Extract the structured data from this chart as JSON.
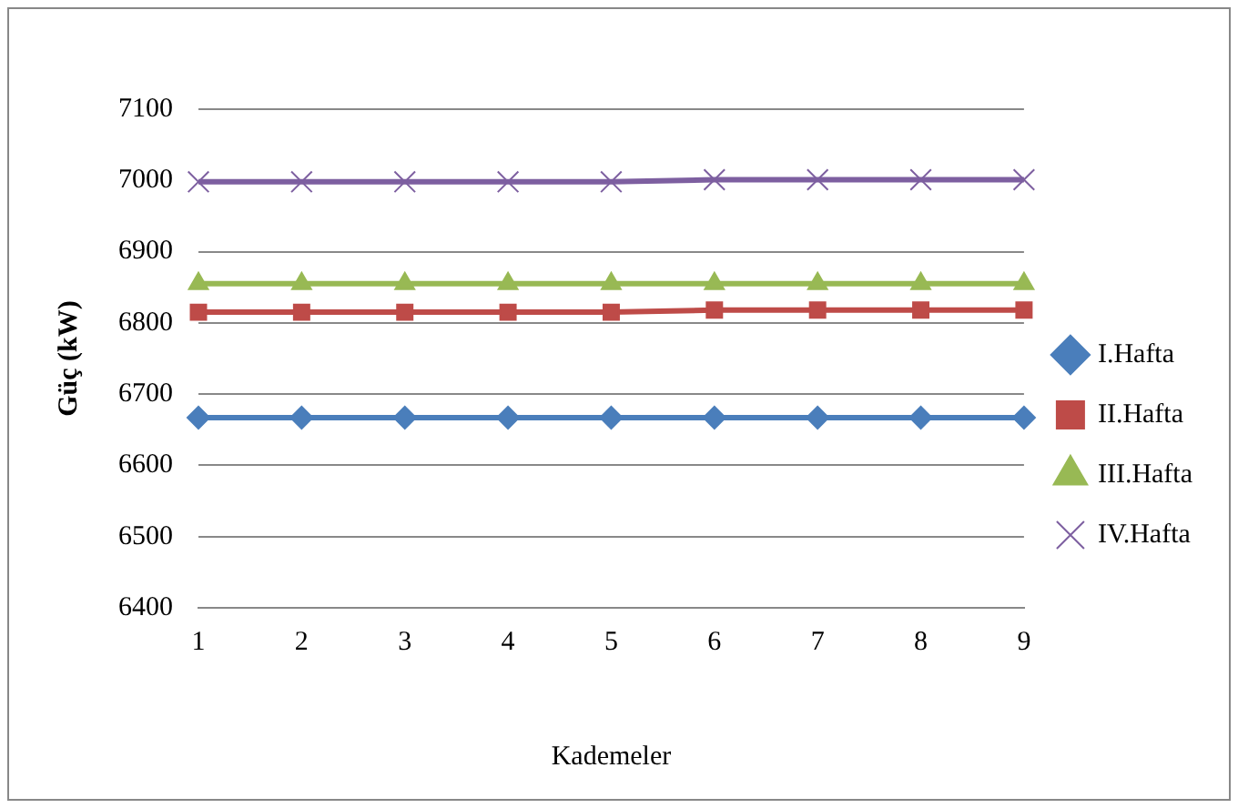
{
  "chart_data": {
    "type": "line",
    "xlabel": "Kademeler",
    "ylabel": "Güç (kW)",
    "categories": [
      "1",
      "2",
      "3",
      "4",
      "5",
      "6",
      "7",
      "8",
      "9"
    ],
    "series": [
      {
        "name": "I.Hafta",
        "color": "#4a7ebb",
        "marker": "diamond",
        "values": [
          6667,
          6667,
          6667,
          6667,
          6667,
          6667,
          6667,
          6667,
          6667
        ]
      },
      {
        "name": "II.Hafta",
        "color": "#be4b48",
        "marker": "square",
        "values": [
          6815,
          6815,
          6815,
          6815,
          6815,
          6818,
          6818,
          6818,
          6818
        ]
      },
      {
        "name": "III.Hafta",
        "color": "#98b954",
        "marker": "triangle",
        "values": [
          6855,
          6855,
          6855,
          6855,
          6855,
          6855,
          6855,
          6855,
          6855
        ]
      },
      {
        "name": "IV.Hafta",
        "color": "#7d5fa0",
        "marker": "cross",
        "values": [
          6998,
          6998,
          6998,
          6998,
          6998,
          7001,
          7001,
          7001,
          7001
        ]
      }
    ],
    "ylim": [
      6400,
      7100
    ],
    "yticks": [
      6400,
      6500,
      6600,
      6700,
      6800,
      6900,
      7000,
      7100
    ],
    "grid": "y",
    "legend": "right"
  }
}
